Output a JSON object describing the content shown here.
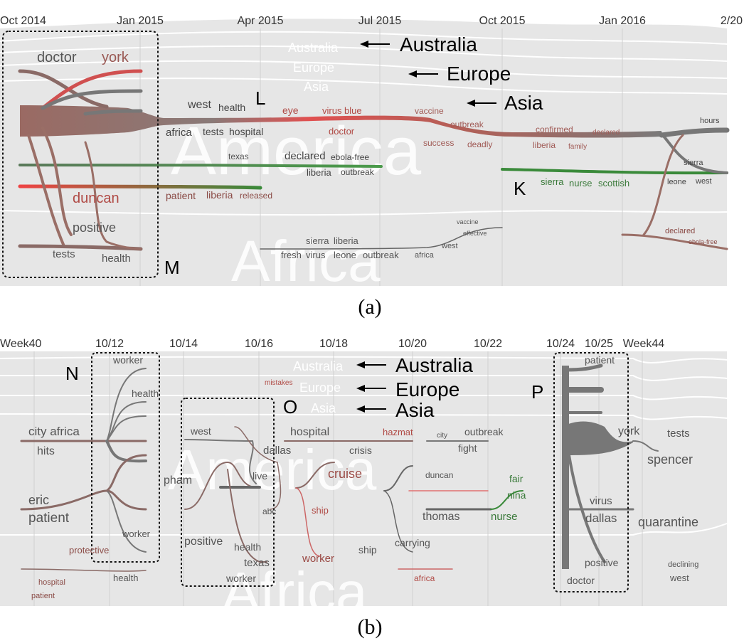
{
  "panel_a": {
    "axis_ticks": [
      "Oct 2014",
      "Jan 2015",
      "Apr 2015",
      "Jul 2015",
      "Oct 2015",
      "Jan 2016",
      "2/20"
    ],
    "regions": {
      "australia": "Australia",
      "europe": "Europe",
      "asia": "Asia",
      "america": "America",
      "africa": "Africa"
    },
    "callouts": {
      "australia": "Australia",
      "europe": "Europe",
      "asia": "Asia"
    },
    "letters": {
      "l": "L",
      "k": "K",
      "m": "M"
    },
    "caption": "(a)",
    "words": {
      "doctor": "doctor",
      "york": "york",
      "duncan": "duncan",
      "positive": "positive",
      "tests": "tests",
      "health": "health",
      "west": "west",
      "health2": "health",
      "africa": "africa",
      "tests2": "tests",
      "hospital": "hospital",
      "eye": "eye",
      "virus_blue": "virus blue",
      "doctor2": "doctor",
      "vaccine": "vaccine",
      "outbreak": "outbreak",
      "success": "success",
      "deadly": "deadly",
      "confirmed": "confirmed",
      "declared": "declared",
      "liberia": "liberia",
      "family": "family",
      "hours": "hours",
      "sierra": "sierra",
      "leone": "leone",
      "west2": "west",
      "texas": "texas",
      "declared2": "declared",
      "ebola_free": "ebola-free",
      "liberia2": "liberia",
      "outbreak2": "outbreak",
      "patient": "patient",
      "liberia3": "liberia",
      "released": "released",
      "sierra2": "sierra",
      "nurse": "nurse",
      "scottish": "scottish",
      "sierra3": "sierra",
      "liberia4": "liberia",
      "fresh": "fresh",
      "virus": "virus",
      "leone2": "leone",
      "outbreak3": "outbreak",
      "africa2": "africa",
      "west3": "west",
      "vaccine2": "vaccine",
      "effective": "effective",
      "declared3": "declared",
      "ebola_free2": "ebola-free"
    }
  },
  "panel_b": {
    "axis_ticks": [
      "Week40",
      "10/12",
      "10/14",
      "10/16",
      "10/18",
      "10/20",
      "10/22",
      "10/24",
      "10/25",
      "Week44"
    ],
    "regions": {
      "australia": "Australia",
      "europe": "Europe",
      "asia": "Asia",
      "america": "America",
      "africa": "Africa"
    },
    "callouts": {
      "australia": "Australia",
      "europe": "Europe",
      "asia": "Asia"
    },
    "letters": {
      "n": "N",
      "o": "O",
      "p": "P"
    },
    "caption": "(b)",
    "words": {
      "worker": "worker",
      "health": "health",
      "city_africa": "city africa",
      "hits": "hits",
      "eric": "eric",
      "patient": "patient",
      "worker2": "worker",
      "protective": "protective",
      "hospital": "hospital",
      "patient2": "patient",
      "health2": "health",
      "mistakes": "mistakes",
      "west": "west",
      "dallas": "dallas",
      "pham": "pham",
      "live": "live",
      "abc": "abc",
      "positive": "positive",
      "health3": "health",
      "texas": "texas",
      "worker3": "worker",
      "hospital2": "hospital",
      "crisis": "crisis",
      "cruise": "cruise",
      "ship": "ship",
      "worker4": "worker",
      "ship2": "ship",
      "hazmat": "hazmat",
      "city": "city",
      "outbreak": "outbreak",
      "fight": "fight",
      "duncan": "duncan",
      "thomas": "thomas",
      "carrying": "carrying",
      "africa": "africa",
      "fair": "fair",
      "nina": "nina",
      "nurse": "nurse",
      "patient3": "patient",
      "york": "york",
      "virus": "virus",
      "dallas2": "dallas",
      "positive2": "positive",
      "doctor": "doctor",
      "tests": "tests",
      "spencer": "spencer",
      "quarantine": "quarantine",
      "declining": "declining",
      "west2": "west"
    }
  }
}
